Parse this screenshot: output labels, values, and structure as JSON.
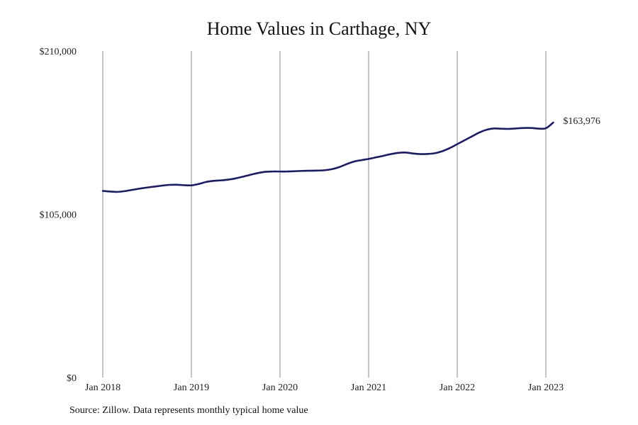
{
  "chart_data": {
    "type": "line",
    "title": "Home Values in Carthage, NY",
    "xlabel": "",
    "ylabel": "",
    "x_ticks": [
      "Jan 2018",
      "Jan 2019",
      "Jan 2020",
      "Jan 2021",
      "Jan 2022",
      "Jan 2023"
    ],
    "y_ticks": [
      "$0",
      "$105,000",
      "$210,000"
    ],
    "ylim": [
      0,
      210000
    ],
    "xlim": [
      "2018-01",
      "2023-03"
    ],
    "grid": "vertical",
    "line_color": "#1a1a6e",
    "end_label": "$163,976",
    "series": [
      {
        "x": [
          "2018-01",
          "2018-02",
          "2018-03",
          "2018-04",
          "2018-05",
          "2018-06",
          "2018-07",
          "2018-08",
          "2018-09",
          "2018-10",
          "2018-11",
          "2018-12",
          "2019-01",
          "2019-02",
          "2019-03",
          "2019-04",
          "2019-05",
          "2019-06",
          "2019-07",
          "2019-08",
          "2019-09",
          "2019-10",
          "2019-11",
          "2019-12",
          "2020-01",
          "2020-02",
          "2020-03",
          "2020-04",
          "2020-05",
          "2020-06",
          "2020-07",
          "2020-08",
          "2020-09",
          "2020-10",
          "2020-11",
          "2020-12",
          "2021-01",
          "2021-02",
          "2021-03",
          "2021-04",
          "2021-05",
          "2021-06",
          "2021-07",
          "2021-08",
          "2021-09",
          "2021-10",
          "2021-11",
          "2021-12",
          "2022-01",
          "2022-02",
          "2022-03",
          "2022-04",
          "2022-05",
          "2022-06",
          "2022-07",
          "2022-08",
          "2022-09",
          "2022-10",
          "2022-11",
          "2022-12",
          "2023-01",
          "2023-02"
        ],
        "values": [
          120000,
          119600,
          119400,
          119900,
          120700,
          121500,
          122200,
          122800,
          123400,
          123900,
          124000,
          123700,
          123600,
          124500,
          125800,
          126500,
          126800,
          127300,
          128100,
          129200,
          130400,
          131500,
          132300,
          132500,
          132500,
          132500,
          132700,
          132900,
          133000,
          133100,
          133300,
          134000,
          135300,
          137200,
          138900,
          139800,
          140600,
          141600,
          142600,
          143700,
          144500,
          144700,
          144100,
          143700,
          143800,
          144300,
          145600,
          147600,
          150100,
          152600,
          155100,
          157600,
          159400,
          160200,
          160000,
          159900,
          160200,
          160500,
          160500,
          160100,
          160300,
          163976
        ]
      }
    ]
  },
  "source_note": "Source: Zillow. Data represents monthly typical home value"
}
